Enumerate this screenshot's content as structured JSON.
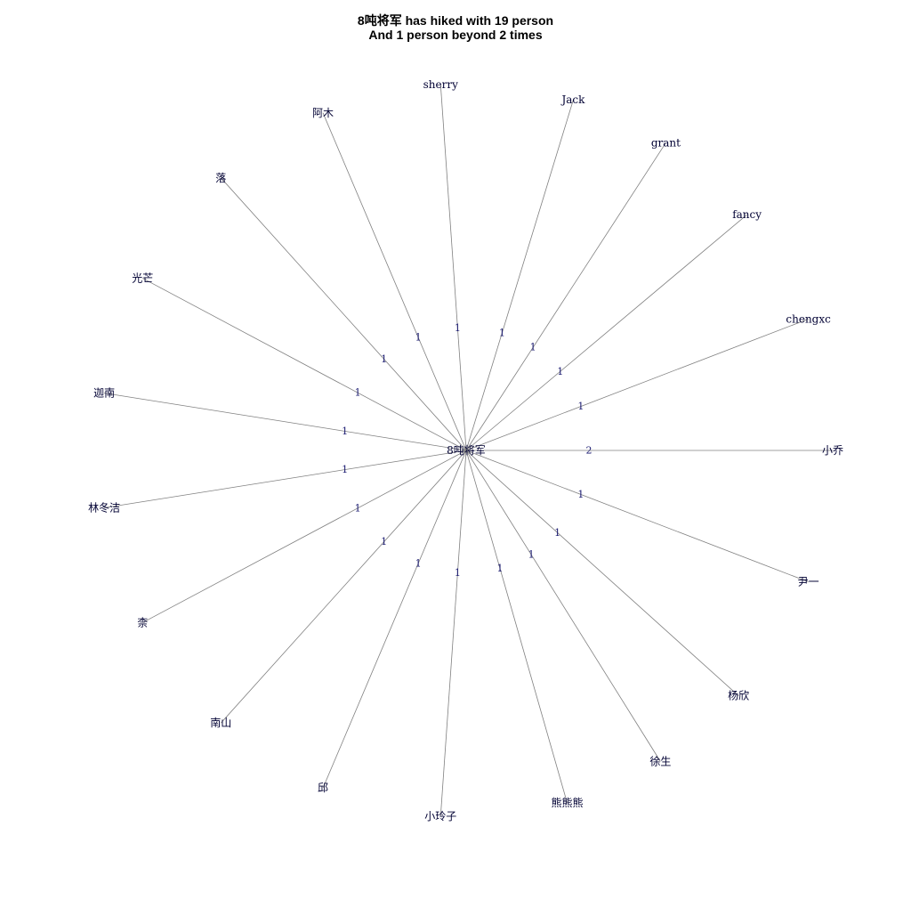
{
  "title_line1": "8吨将军 has hiked with 19 person",
  "title_line2": "And 1 person beyond 2 times",
  "colors": {
    "edge": "#808080",
    "node_label": "#000033",
    "edge_label": "#191970"
  },
  "network": {
    "center": "8吨将军",
    "edges": [
      {
        "name": "小乔",
        "weight": "2",
        "angle_deg": 0
      },
      {
        "name": "chengxc",
        "weight": "1",
        "angle_deg": 21
      },
      {
        "name": "fancy",
        "weight": "1",
        "angle_deg": 40
      },
      {
        "name": "grant",
        "weight": "1",
        "angle_deg": 57
      },
      {
        "name": "Jack",
        "weight": "1",
        "angle_deg": 73
      },
      {
        "name": "sherry",
        "weight": "1",
        "angle_deg": 94
      },
      {
        "name": "阿木",
        "weight": "1",
        "angle_deg": 113
      },
      {
        "name": "落",
        "weight": "1",
        "angle_deg": 132
      },
      {
        "name": "光芒",
        "weight": "1",
        "angle_deg": 152
      },
      {
        "name": "迦南",
        "weight": "1",
        "angle_deg": 171
      },
      {
        "name": "林冬洁",
        "weight": "1",
        "angle_deg": 189
      },
      {
        "name": "柰",
        "weight": "1",
        "angle_deg": 208
      },
      {
        "name": "南山",
        "weight": "1",
        "angle_deg": 228
      },
      {
        "name": "邱",
        "weight": "1",
        "angle_deg": 247
      },
      {
        "name": "小玲子",
        "weight": "1",
        "angle_deg": 266
      },
      {
        "name": "熊熊熊",
        "weight": "1",
        "angle_deg": 286
      },
      {
        "name": "徐生",
        "weight": "1",
        "angle_deg": 302
      },
      {
        "name": "杨欣",
        "weight": "1",
        "angle_deg": 318
      },
      {
        "name": "尹一",
        "weight": "1",
        "angle_deg": 339
      }
    ]
  }
}
